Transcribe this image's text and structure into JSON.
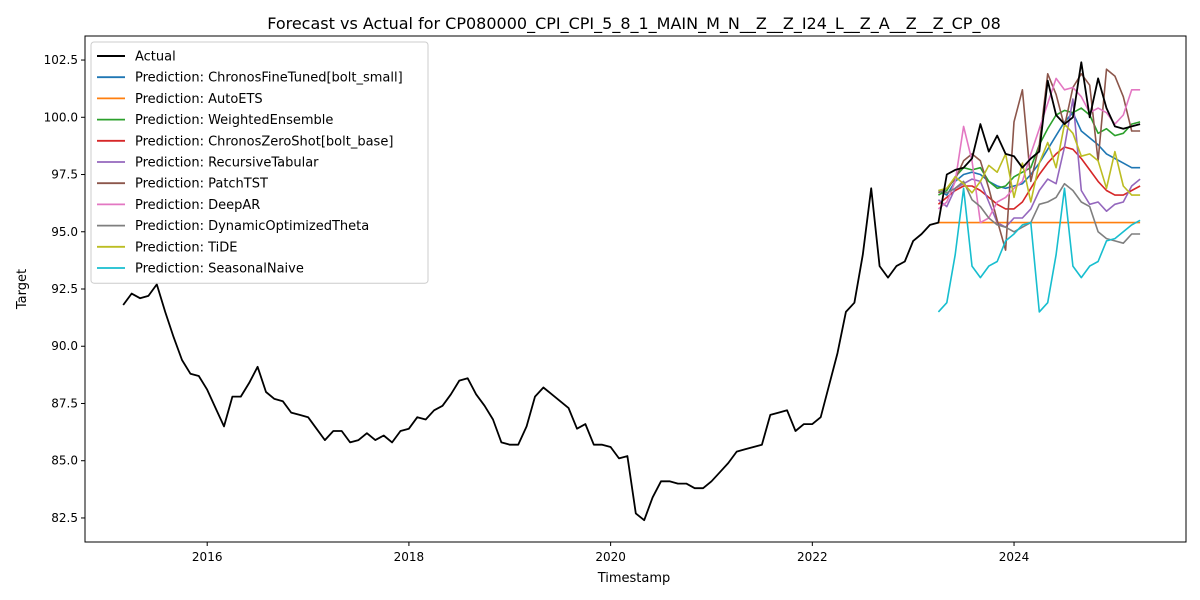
{
  "chart_data": {
    "type": "line",
    "title": "Forecast vs Actual for CP080000_CPI_CPI_5_8_1_MAIN_M_N__Z__Z_I24_L__Z_A__Z__Z_CP_08",
    "xlabel": "Timestamp",
    "ylabel": "Target",
    "xlim": [
      "2014-10-15",
      "2025-09-15"
    ],
    "ylim": [
      81.45,
      103.55
    ],
    "x_ticks": [
      "2016",
      "2018",
      "2020",
      "2022",
      "2024"
    ],
    "y_ticks": [
      "82.5",
      "85.0",
      "87.5",
      "90.0",
      "92.5",
      "95.0",
      "97.5",
      "100.0",
      "102.5"
    ],
    "grid": false,
    "legend_position": "top-left",
    "actual": {
      "name": "Actual",
      "color": "#000000",
      "start": "2015-03",
      "values": [
        91.8,
        92.3,
        92.1,
        92.2,
        92.7,
        91.5,
        90.4,
        89.4,
        88.8,
        88.7,
        88.1,
        87.3,
        86.5,
        87.8,
        87.8,
        88.4,
        89.1,
        88.0,
        87.7,
        87.6,
        87.1,
        87.0,
        86.9,
        86.4,
        85.9,
        86.3,
        86.3,
        85.8,
        85.9,
        86.2,
        85.9,
        86.1,
        85.8,
        86.3,
        86.4,
        86.9,
        86.8,
        87.2,
        87.4,
        87.9,
        88.5,
        88.6,
        87.9,
        87.4,
        86.8,
        85.8,
        85.7,
        85.7,
        86.5,
        87.8,
        88.2,
        87.9,
        87.6,
        87.3,
        86.4,
        86.6,
        85.7,
        85.7,
        85.6,
        85.1,
        85.2,
        82.7,
        82.4,
        83.4,
        84.1,
        84.1,
        84.0,
        84.0,
        83.8,
        83.8,
        84.1,
        84.5,
        84.9,
        85.4,
        85.5,
        85.6,
        85.7,
        87.0,
        87.1,
        87.2,
        86.3,
        86.6,
        86.6,
        86.9,
        88.3,
        89.7,
        91.5,
        91.9,
        94.0,
        96.9,
        93.5,
        93.0,
        93.5,
        93.7,
        94.6,
        94.9,
        95.3,
        95.4,
        97.5,
        97.7,
        97.8,
        98.2,
        99.7,
        98.5,
        99.2,
        98.4,
        98.3,
        97.8,
        98.2,
        98.5,
        101.6,
        100.1,
        99.7,
        100.0,
        102.4,
        100.0,
        101.7,
        100.4,
        99.6,
        99.5,
        99.6,
        99.7
      ]
    },
    "forecast_start": "2023-04",
    "series": [
      {
        "name": "Prediction: ChronosFineTuned[bolt_small]",
        "color": "#1f77b4",
        "values": [
          96.8,
          96.6,
          97.2,
          97.5,
          97.6,
          97.5,
          97.2,
          97.0,
          96.9,
          97.0,
          97.1,
          97.5,
          98.0,
          98.6,
          99.2,
          99.8,
          100.2,
          99.4,
          99.1,
          98.8,
          98.4,
          98.2,
          98.0,
          97.8,
          97.8
        ]
      },
      {
        "name": "Prediction: AutoETS",
        "color": "#ff7f0e",
        "values": [
          95.4,
          95.4,
          95.4,
          95.4,
          95.4,
          95.4,
          95.4,
          95.4,
          95.4,
          95.4,
          95.4,
          95.4,
          95.4,
          95.4,
          95.4,
          95.4,
          95.4,
          95.4,
          95.4,
          95.4,
          95.4,
          95.4,
          95.4,
          95.4,
          95.4
        ]
      },
      {
        "name": "Prediction: WeightedEnsemble",
        "color": "#2ca02c",
        "values": [
          96.6,
          96.8,
          97.4,
          97.8,
          97.7,
          97.8,
          97.2,
          96.9,
          97.0,
          97.4,
          97.6,
          97.8,
          98.8,
          99.5,
          100.1,
          100.3,
          100.2,
          100.4,
          100.1,
          99.3,
          99.5,
          99.2,
          99.3,
          99.7,
          99.8
        ]
      },
      {
        "name": "Prediction: ChronosZeroShot[bolt_base]",
        "color": "#d62728",
        "values": [
          96.2,
          96.5,
          96.8,
          97.0,
          97.0,
          96.8,
          96.5,
          96.2,
          96.0,
          96.0,
          96.3,
          96.9,
          97.5,
          98.0,
          98.4,
          98.7,
          98.6,
          98.2,
          97.7,
          97.2,
          96.8,
          96.6,
          96.6,
          96.8,
          97.0
        ]
      },
      {
        "name": "Prediction: RecursiveTabular",
        "color": "#9467bd",
        "values": [
          96.4,
          96.1,
          96.9,
          97.1,
          97.3,
          97.2,
          96.3,
          95.4,
          95.2,
          95.6,
          95.6,
          96.0,
          96.8,
          97.3,
          97.1,
          98.7,
          100.8,
          96.8,
          96.2,
          96.3,
          95.9,
          96.2,
          96.3,
          97.0,
          97.3
        ]
      },
      {
        "name": "Prediction: PatchTST",
        "color": "#8c564b",
        "values": [
          96.7,
          96.9,
          97.3,
          98.1,
          98.4,
          98.1,
          96.9,
          95.5,
          94.2,
          99.8,
          101.2,
          97.2,
          98.8,
          101.9,
          101.0,
          99.6,
          101.3,
          101.9,
          101.4,
          98.1,
          102.1,
          101.8,
          100.9,
          99.4,
          99.4
        ]
      },
      {
        "name": "Prediction: DeepAR",
        "color": "#e377c2",
        "values": [
          96.0,
          96.3,
          97.2,
          99.6,
          98.1,
          95.4,
          95.6,
          96.3,
          96.5,
          96.9,
          97.2,
          98.4,
          99.5,
          100.6,
          101.7,
          101.2,
          101.3,
          100.9,
          100.2,
          100.4,
          100.2,
          99.7,
          100.1,
          101.2,
          101.2
        ]
      },
      {
        "name": "Prediction: DynamicOptimizedTheta",
        "color": "#7f7f7f",
        "values": [
          96.8,
          96.7,
          96.9,
          97.2,
          96.4,
          96.1,
          95.6,
          95.3,
          95.2,
          95.0,
          95.2,
          95.4,
          96.2,
          96.3,
          96.5,
          97.1,
          96.8,
          96.3,
          96.1,
          95.0,
          94.7,
          94.6,
          94.5,
          94.9,
          94.9
        ]
      },
      {
        "name": "Prediction: TiDE",
        "color": "#bcbd22",
        "values": [
          96.8,
          96.9,
          97.4,
          97.1,
          96.7,
          97.2,
          97.9,
          97.6,
          98.4,
          96.5,
          98.0,
          96.3,
          98.0,
          98.9,
          97.8,
          99.7,
          99.3,
          98.3,
          98.4,
          98.1,
          96.9,
          98.5,
          97.0,
          96.6,
          96.6
        ]
      },
      {
        "name": "Prediction: SeasonalNaive",
        "color": "#17becf",
        "values": [
          91.5,
          91.9,
          94.0,
          96.9,
          93.5,
          93.0,
          93.5,
          93.7,
          94.6,
          94.9,
          95.3,
          95.4,
          91.5,
          91.9,
          94.0,
          96.9,
          93.5,
          93.0,
          93.5,
          93.7,
          94.6,
          94.7,
          95.0,
          95.3,
          95.5
        ]
      }
    ]
  }
}
